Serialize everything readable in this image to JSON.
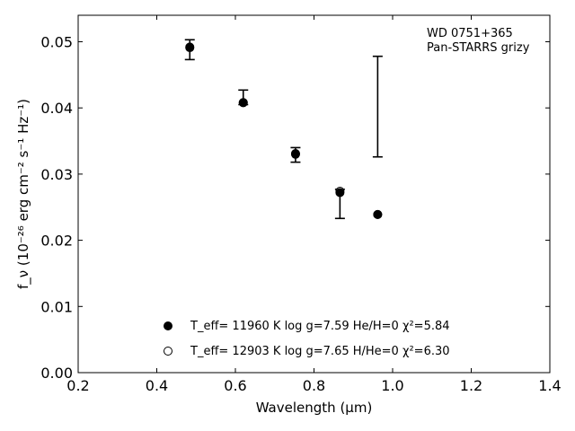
{
  "chart_data": {
    "type": "scatter",
    "title": "",
    "xlabel": "Wavelength (μm)",
    "ylabel": "f_ν (10⁻²⁶ erg cm⁻² s⁻¹ Hz⁻¹)",
    "xlim": [
      0.2,
      1.4
    ],
    "ylim": [
      0.0,
      0.054
    ],
    "xticks": [
      "0.2",
      "0.4",
      "0.6",
      "0.8",
      "1.0",
      "1.2",
      "1.4"
    ],
    "yticks": [
      "0.00",
      "0.01",
      "0.02",
      "0.03",
      "0.04",
      "0.05"
    ],
    "grid": false,
    "annotation": [
      "WD 0751+365",
      "Pan-STARRS grizy"
    ],
    "observed": [
      {
        "x": 0.484,
        "y": 0.0488,
        "yerr": 0.0015
      },
      {
        "x": 0.62,
        "y": 0.0416,
        "yerr": 0.0011
      },
      {
        "x": 0.753,
        "y": 0.0329,
        "yerr": 0.0011
      },
      {
        "x": 0.866,
        "y": 0.0255,
        "yerr": 0.0022
      },
      {
        "x": 0.962,
        "y": 0.0402,
        "yerr": 0.0076
      }
    ],
    "series": [
      {
        "legend": "T_eff= 11960 K  log g=7.59  He/H=0  χ²=5.84",
        "marker": "filled",
        "values": [
          {
            "x": 0.484,
            "y": 0.0492
          },
          {
            "x": 0.62,
            "y": 0.0408
          },
          {
            "x": 0.753,
            "y": 0.033
          },
          {
            "x": 0.866,
            "y": 0.0272
          },
          {
            "x": 0.962,
            "y": 0.0239
          }
        ]
      },
      {
        "legend": "T_eff= 12903 K  log g=7.65  H/He=0  χ²=6.30",
        "marker": "open",
        "values": [
          {
            "x": 0.484,
            "y": 0.0491
          },
          {
            "x": 0.62,
            "y": 0.0408
          },
          {
            "x": 0.753,
            "y": 0.0331
          },
          {
            "x": 0.866,
            "y": 0.0274
          },
          {
            "x": 0.962,
            "y": 0.0239
          }
        ]
      }
    ],
    "legend_position": "bottom-center"
  }
}
